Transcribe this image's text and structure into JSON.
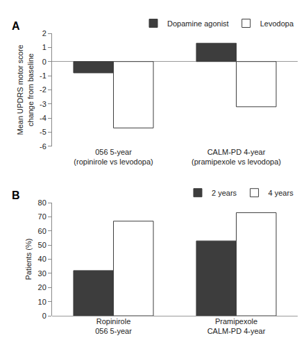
{
  "chart_data": [
    {
      "type": "bar",
      "title": "A",
      "ylabel": "Mean UPDRS motor score\nchange from baseline",
      "categories": [
        "056 5-year\n(ropinirole vs levodopa)",
        "CALM-PD 4-year\n(pramipexole vs levodopa)"
      ],
      "series": [
        {
          "name": "Dopamine agonist",
          "color": "#3d3d3d",
          "values": [
            -0.8,
            1.3
          ]
        },
        {
          "name": "Levodopa",
          "color": "#ffffff",
          "values": [
            -4.7,
            -3.2
          ]
        }
      ],
      "ylim": [
        -6,
        2
      ],
      "yticks": [
        -6,
        -5,
        -4,
        -3,
        -2,
        -1,
        0,
        1,
        2
      ],
      "grid": false,
      "legend": "upper right"
    },
    {
      "type": "bar",
      "title": "B",
      "ylabel": "Patients (%)",
      "categories": [
        "Ropinirole\n056 5-year",
        "Pramipexole\nCALM-PD 4-year"
      ],
      "series": [
        {
          "name": "2 years",
          "color": "#3d3d3d",
          "values": [
            32,
            53
          ]
        },
        {
          "name": "4 years",
          "color": "#ffffff",
          "values": [
            67,
            73
          ]
        }
      ],
      "ylim": [
        0,
        80
      ],
      "yticks": [
        0,
        10,
        20,
        30,
        40,
        50,
        60,
        70,
        80
      ],
      "grid": false,
      "legend": "upper right"
    }
  ]
}
